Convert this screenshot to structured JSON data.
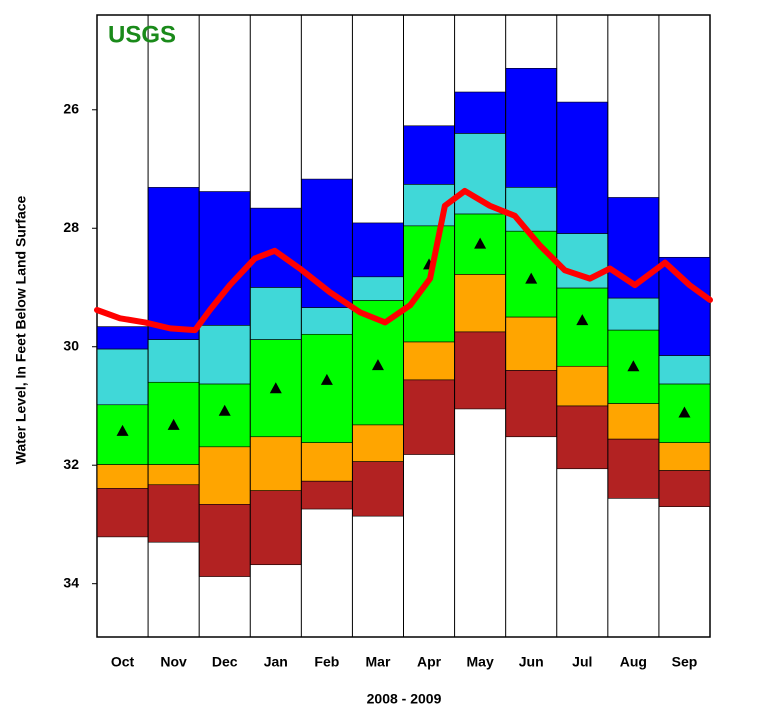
{
  "chart_data": {
    "type": "bar",
    "logo": "USGS",
    "ylabel": "Water Level, In Feet Below Land Surface",
    "xlabel": "2008 - 2009",
    "categories": [
      "Oct",
      "Nov",
      "Dec",
      "Jan",
      "Feb",
      "Mar",
      "Apr",
      "May",
      "Jun",
      "Jul",
      "Aug",
      "Sep"
    ],
    "bounds": [
      [
        29.66,
        30.04,
        30.98,
        31.99,
        32.39,
        33.21
      ],
      [
        27.31,
        29.88,
        30.6,
        31.99,
        32.33,
        33.3
      ],
      [
        27.38,
        29.64,
        30.63,
        31.69,
        32.66,
        33.88
      ],
      [
        27.66,
        29.0,
        29.88,
        31.52,
        32.43,
        33.68
      ],
      [
        27.17,
        29.34,
        29.79,
        31.62,
        32.27,
        32.74
      ],
      [
        27.91,
        28.82,
        29.22,
        31.32,
        31.94,
        32.86
      ],
      [
        26.27,
        27.26,
        27.96,
        29.92,
        30.56,
        31.82
      ],
      [
        25.7,
        26.4,
        27.76,
        28.78,
        29.75,
        31.05
      ],
      [
        25.3,
        27.31,
        28.05,
        29.5,
        30.4,
        31.52
      ],
      [
        25.87,
        28.09,
        29.01,
        30.33,
        31.0,
        32.06
      ],
      [
        27.48,
        29.18,
        29.72,
        30.96,
        31.56,
        32.56
      ],
      [
        28.49,
        30.15,
        30.63,
        31.62,
        32.09,
        32.7
      ]
    ],
    "band_colors": [
      "#0000ff",
      "#40d8d8",
      "#00ff00",
      "#ffa500",
      "#b22222"
    ],
    "medians": [
      31.42,
      31.32,
      31.08,
      30.7,
      30.56,
      30.31,
      28.61,
      28.26,
      28.85,
      29.55,
      30.33,
      31.11
    ],
    "median_color": "#000000",
    "line": {
      "color": "#ff0000",
      "x": [
        0,
        0.45,
        0.94,
        1.43,
        1.92,
        2.21,
        2.6,
        3.09,
        3.48,
        3.97,
        4.56,
        5.15,
        5.64,
        6.13,
        6.52,
        6.81,
        7.2,
        7.69,
        8.18,
        8.67,
        9.16,
        9.65,
        10.04,
        10.53,
        11.12,
        11.6,
        12
      ],
      "values": [
        29.38,
        29.52,
        29.59,
        29.69,
        29.72,
        29.38,
        28.96,
        28.51,
        28.38,
        28.68,
        29.08,
        29.42,
        29.59,
        29.3,
        28.85,
        27.62,
        27.37,
        27.62,
        27.79,
        28.29,
        28.71,
        28.85,
        28.68,
        28.96,
        28.58,
        28.96,
        29.21
      ]
    },
    "xlim": [
      0,
      12
    ],
    "ylim": [
      34.9,
      24.4
    ],
    "yticks": [
      26,
      28,
      30,
      32,
      34
    ]
  }
}
